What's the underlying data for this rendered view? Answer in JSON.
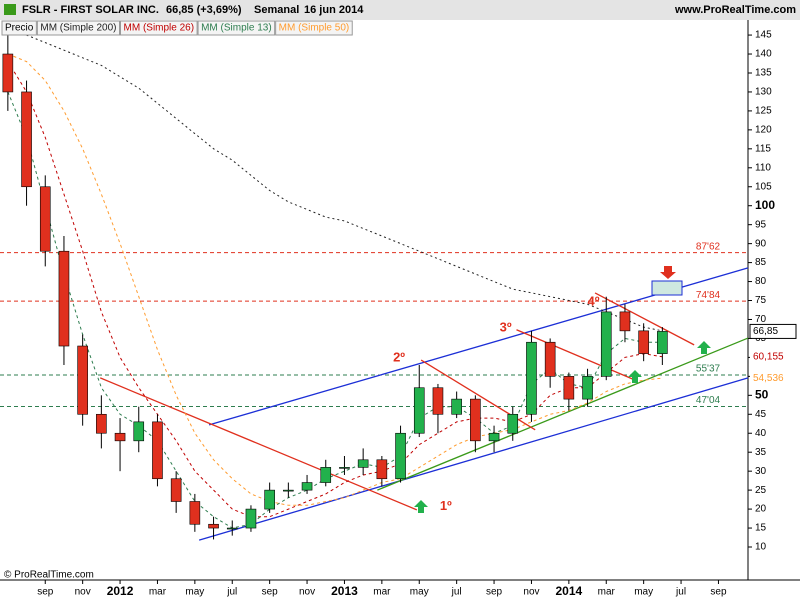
{
  "chart_data": {
    "type": "candlestick",
    "title": "FSLR - FIRST SOLAR INC.",
    "last": "66,85 (+3,69%)",
    "period": "Semanal",
    "date": "16 jun 2014",
    "source": "www.ProRealTime.com",
    "copyright": "© ProRealTime.com",
    "price_name": "Precio",
    "up_color": "#22b14c",
    "down_color": "#e0301e",
    "x": [
      -6,
      -5,
      -4,
      -3,
      -2,
      -1,
      0,
      1,
      2,
      3,
      4,
      5,
      6,
      7,
      8,
      9,
      10,
      11,
      12,
      13,
      14,
      15,
      16,
      17,
      18,
      19,
      20,
      21,
      22,
      23,
      24,
      25,
      26,
      27,
      28,
      29
    ],
    "open": [
      140,
      130,
      105,
      88,
      63,
      45,
      40,
      38,
      43,
      28,
      22,
      16,
      15,
      15,
      20,
      25,
      25,
      27,
      31,
      31,
      33,
      28,
      40,
      52,
      45,
      49,
      38,
      40,
      45,
      64,
      55,
      49,
      55,
      72,
      67,
      61
    ],
    "high": [
      145,
      133,
      108,
      92,
      66,
      50,
      44,
      47,
      45,
      30,
      24,
      18,
      17,
      21,
      27,
      27,
      29,
      33,
      34,
      36,
      34,
      42,
      58,
      53,
      51,
      50,
      42,
      47,
      67,
      65,
      56,
      57,
      76,
      74,
      69,
      68
    ],
    "low": [
      125,
      100,
      84,
      58,
      42,
      36,
      30,
      35,
      26,
      19,
      14,
      12,
      13,
      14,
      19,
      23,
      24,
      26,
      29,
      29,
      26,
      27,
      39,
      40,
      44,
      35,
      35,
      38,
      43,
      52,
      46,
      47,
      54,
      64,
      59,
      58
    ],
    "close": [
      130,
      105,
      88,
      63,
      45,
      40,
      38,
      43,
      28,
      22,
      16,
      15,
      15,
      20,
      25,
      25,
      27,
      31,
      31,
      33,
      28,
      40,
      52,
      45,
      49,
      38,
      40,
      45,
      64,
      55,
      49,
      55,
      72,
      67,
      61,
      66.85
    ],
    "series": [
      {
        "name": "MM (Simple 200)",
        "color": "#222222",
        "dash": "2,3",
        "values": [
          147,
          145,
          143,
          141,
          139,
          137,
          134,
          131,
          127,
          123,
          119,
          115,
          112,
          108,
          104,
          101,
          99,
          97,
          96,
          94,
          92,
          90,
          88,
          86,
          84,
          82,
          80,
          78,
          77,
          76,
          75,
          74,
          72,
          70,
          68,
          67
        ]
      },
      {
        "name": "MM (Simple 26)",
        "color": "#c00000",
        "dash": "3,3",
        "values": [
          138,
          130,
          118,
          103,
          88,
          72,
          60,
          52,
          45,
          38,
          30,
          25,
          20,
          18,
          18,
          20,
          22,
          24,
          27,
          29,
          30,
          32,
          37,
          40,
          43,
          44,
          44,
          43,
          45,
          50,
          52,
          52,
          56,
          60,
          61,
          60.155
        ]
      },
      {
        "name": "MM (Simple 13)",
        "color": "#2e7d4f",
        "dash": "3,3",
        "values": [
          130,
          118,
          100,
          82,
          66,
          52,
          45,
          42,
          38,
          30,
          22,
          18,
          15,
          16,
          20,
          23,
          25,
          28,
          30,
          32,
          31,
          34,
          44,
          47,
          47,
          44,
          40,
          42,
          53,
          57,
          53,
          52,
          61,
          65,
          64,
          64
        ]
      },
      {
        "name": "MM (Simple 50)",
        "color": "#ff9c30",
        "dash": "3,3",
        "values": [
          140,
          138,
          133,
          125,
          115,
          103,
          90,
          76,
          62,
          50,
          40,
          33,
          28,
          24,
          22,
          21,
          21,
          22,
          23,
          25,
          27,
          28,
          31,
          34,
          37,
          39,
          40,
          41,
          43,
          45,
          46,
          48,
          51,
          53,
          54,
          54.536
        ]
      }
    ],
    "price_tags": [
      {
        "value": 66.85,
        "label": "66,85",
        "color": "#000000"
      },
      {
        "value": 60.155,
        "label": "60,155",
        "color": "#c00000"
      },
      {
        "value": 54.536,
        "label": "54,536",
        "color": "#ff9c30"
      }
    ],
    "hlines": [
      {
        "value": 87.62,
        "label": "87'62",
        "color": "#e0301e"
      },
      {
        "value": 74.84,
        "label": "74'84",
        "color": "#e0301e"
      },
      {
        "value": 55.37,
        "label": "55'37",
        "color": "#2e7d4f"
      },
      {
        "value": 47.04,
        "label": "47'04",
        "color": "#2e7d4f"
      }
    ],
    "trendlines": [
      {
        "color": "#1c2fd6",
        "x": [
          4.76,
          33.58
        ],
        "y": [
          42.2,
          83.6
        ]
      },
      {
        "color": "#1c2fd6",
        "x": [
          4.23,
          33.58
        ],
        "y": [
          11.8,
          54.6
        ]
      },
      {
        "color": "#3a9a1a",
        "x": [
          13.76,
          33.58
        ],
        "y": [
          25,
          65.1
        ]
      },
      {
        "color": "#e0301e",
        "x": [
          -1.06,
          15.87
        ],
        "y": [
          54.6,
          19.8
        ]
      },
      {
        "color": "#e0301e",
        "x": [
          16.1,
          22.2
        ],
        "y": [
          59.3,
          40.9
        ]
      },
      {
        "color": "#e0301e",
        "x": [
          21.2,
          27.5
        ],
        "y": [
          67.3,
          54.1
        ]
      },
      {
        "color": "#e0301e",
        "x": [
          25.4,
          30.7
        ],
        "y": [
          77,
          63.3
        ]
      }
    ],
    "annotations": [
      {
        "text": "1º",
        "x": 17.1,
        "y": 20.6
      },
      {
        "text": "2º",
        "x": 14.6,
        "y": 59.8
      },
      {
        "text": "3º",
        "x": 20.3,
        "y": 67.8
      },
      {
        "text": "4º",
        "x": 25,
        "y": 74.6
      }
    ],
    "xlim": [
      -6.42,
      33.58
    ],
    "ylim": [
      1.3,
      149.5
    ],
    "xticks": [
      {
        "value": -4,
        "label": "sep"
      },
      {
        "value": -2,
        "label": "nov"
      },
      {
        "value": 0,
        "label": "2012"
      },
      {
        "value": 2,
        "label": "mar"
      },
      {
        "value": 4,
        "label": "may"
      },
      {
        "value": 6,
        "label": "jul"
      },
      {
        "value": 8,
        "label": "sep"
      },
      {
        "value": 10,
        "label": "nov"
      },
      {
        "value": 12,
        "label": "2013"
      },
      {
        "value": 14,
        "label": "mar"
      },
      {
        "value": 16,
        "label": "may"
      },
      {
        "value": 18,
        "label": "jul"
      },
      {
        "value": 20,
        "label": "sep"
      },
      {
        "value": 22,
        "label": "nov"
      },
      {
        "value": 24,
        "label": "2014"
      },
      {
        "value": 26,
        "label": "mar"
      },
      {
        "value": 28,
        "label": "may"
      },
      {
        "value": 30,
        "label": "jul"
      },
      {
        "value": 32,
        "label": "sep"
      }
    ],
    "yticks": [
      10,
      15,
      20,
      25,
      30,
      35,
      40,
      45,
      50,
      55,
      60,
      65,
      70,
      75,
      80,
      85,
      90,
      95,
      100,
      105,
      110,
      115,
      120,
      125,
      130,
      135,
      140,
      145
    ]
  }
}
